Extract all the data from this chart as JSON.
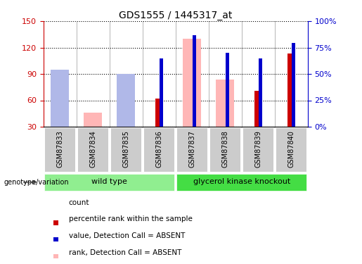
{
  "title": "GDS1555 / 1445317_at",
  "samples": [
    "GSM87833",
    "GSM87834",
    "GSM87835",
    "GSM87836",
    "GSM87837",
    "GSM87838",
    "GSM87839",
    "GSM87840"
  ],
  "count": [
    30,
    30,
    30,
    62,
    30,
    30,
    71,
    113
  ],
  "percentile_rank": [
    null,
    null,
    null,
    65,
    87,
    70,
    65,
    79
  ],
  "value_absent": [
    32,
    46,
    30,
    null,
    130,
    84,
    null,
    null
  ],
  "rank_absent": [
    54,
    null,
    50,
    null,
    null,
    null,
    null,
    null
  ],
  "ylim_left": [
    30,
    150
  ],
  "yticks_left": [
    30,
    60,
    90,
    120,
    150
  ],
  "ylim_right": [
    0,
    100
  ],
  "yticks_right": [
    0,
    25,
    50,
    75,
    100
  ],
  "color_count": "#cc0000",
  "color_percentile": "#0000cc",
  "color_value_absent": "#ffb6b6",
  "color_rank_absent": "#b0b8e8",
  "color_wt_group": "#90ee90",
  "color_ko_group": "#44dd44",
  "color_left_axis": "#cc0000",
  "color_right_axis": "#0000cc",
  "color_sample_bg": "#cccccc",
  "wt_label": "wild type",
  "ko_label": "glycerol kinase knockout",
  "legend_items": [
    {
      "label": "count",
      "color": "#cc0000"
    },
    {
      "label": "percentile rank within the sample",
      "color": "#0000cc"
    },
    {
      "label": "value, Detection Call = ABSENT",
      "color": "#ffb6b6"
    },
    {
      "label": "rank, Detection Call = ABSENT",
      "color": "#b0b8e8"
    }
  ]
}
